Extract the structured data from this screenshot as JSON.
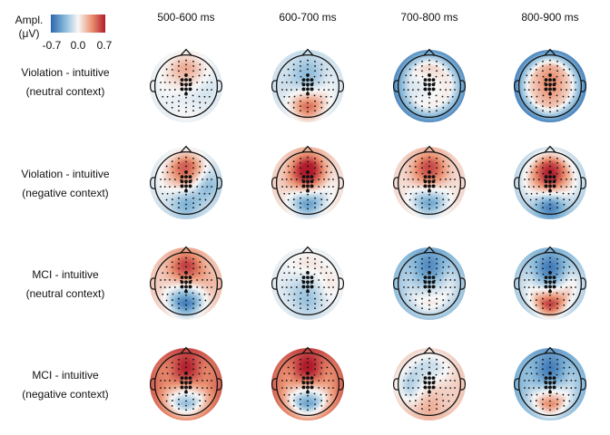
{
  "colorbar": {
    "title_line1": "Ampl.",
    "title_line2": "(μV)",
    "min_label": "-0.7",
    "mid_label": "0.0",
    "max_label": "0.7",
    "min": -0.7,
    "max": 0.7,
    "colors": [
      "#2b67ad",
      "#84b6d8",
      "#f7f7f7",
      "#eb9272",
      "#b01c2c"
    ]
  },
  "columns": [
    "500-600 ms",
    "600-700 ms",
    "700-800 ms",
    "800-900 ms"
  ],
  "rows": [
    {
      "line1": "Violation - intuitive",
      "line2": "(neutral context)",
      "maps": [
        {
          "frontal": 0.25,
          "central": 0.05,
          "parietal": -0.12,
          "occipital": 0.1,
          "left": 0.0,
          "right": -0.1,
          "rim": -0.05
        },
        {
          "frontal": -0.2,
          "central": -0.25,
          "parietal": 0.3,
          "occipital": 0.35,
          "left": -0.1,
          "right": 0.0,
          "rim": -0.1
        },
        {
          "frontal": 0.15,
          "central": -0.1,
          "parietal": 0.05,
          "occipital": 0.0,
          "left": -0.1,
          "right": 0.05,
          "rim": -0.55
        },
        {
          "frontal": 0.15,
          "central": 0.25,
          "parietal": 0.1,
          "occipital": 0.05,
          "left": 0.0,
          "right": 0.0,
          "rim": -0.6
        }
      ]
    },
    {
      "line1": "Violation - intuitive",
      "line2": "(negative context)",
      "maps": [
        {
          "frontal": 0.4,
          "central": 0.3,
          "parietal": -0.3,
          "occipital": -0.2,
          "left": 0.0,
          "right": -0.35,
          "rim": -0.1
        },
        {
          "frontal": 0.5,
          "central": 0.55,
          "parietal": -0.4,
          "occipital": -0.3,
          "left": 0.1,
          "right": -0.05,
          "rim": 0.1
        },
        {
          "frontal": 0.45,
          "central": 0.3,
          "parietal": -0.35,
          "occipital": -0.25,
          "left": 0.05,
          "right": 0.05,
          "rim": 0.1
        },
        {
          "frontal": 0.35,
          "central": 0.6,
          "parietal": -0.3,
          "occipital": -0.5,
          "left": 0.0,
          "right": 0.0,
          "rim": -0.2
        }
      ]
    },
    {
      "line1": "MCI - intuitive",
      "line2": "(neutral context)",
      "maps": [
        {
          "frontal": 0.55,
          "central": 0.15,
          "parietal": -0.45,
          "occipital": -0.35,
          "left": 0.1,
          "right": 0.2,
          "rim": 0.15
        },
        {
          "frontal": 0.1,
          "central": -0.1,
          "parietal": -0.2,
          "occipital": -0.1,
          "left": -0.05,
          "right": 0.1,
          "rim": -0.05
        },
        {
          "frontal": -0.5,
          "central": -0.1,
          "parietal": 0.05,
          "occipital": 0.05,
          "left": -0.1,
          "right": 0.0,
          "rim": -0.3
        },
        {
          "frontal": -0.5,
          "central": -0.3,
          "parietal": 0.35,
          "occipital": 0.5,
          "left": 0.0,
          "right": 0.1,
          "rim": -0.25
        }
      ]
    },
    {
      "line1": "MCI - intuitive",
      "line2": "(negative context)",
      "maps": [
        {
          "frontal": 0.6,
          "central": 0.2,
          "parietal": -0.3,
          "occipital": -0.15,
          "left": 0.3,
          "right": 0.3,
          "rim": 0.45
        },
        {
          "frontal": 0.65,
          "central": 0.2,
          "parietal": -0.4,
          "occipital": -0.2,
          "left": 0.25,
          "right": 0.25,
          "rim": 0.45
        },
        {
          "frontal": -0.15,
          "central": 0.0,
          "parietal": 0.15,
          "occipital": 0.15,
          "left": -0.25,
          "right": 0.1,
          "rim": 0.15
        },
        {
          "frontal": -0.5,
          "central": -0.25,
          "parietal": 0.3,
          "occipital": 0.25,
          "left": -0.2,
          "right": -0.1,
          "rim": -0.35
        }
      ]
    }
  ]
}
